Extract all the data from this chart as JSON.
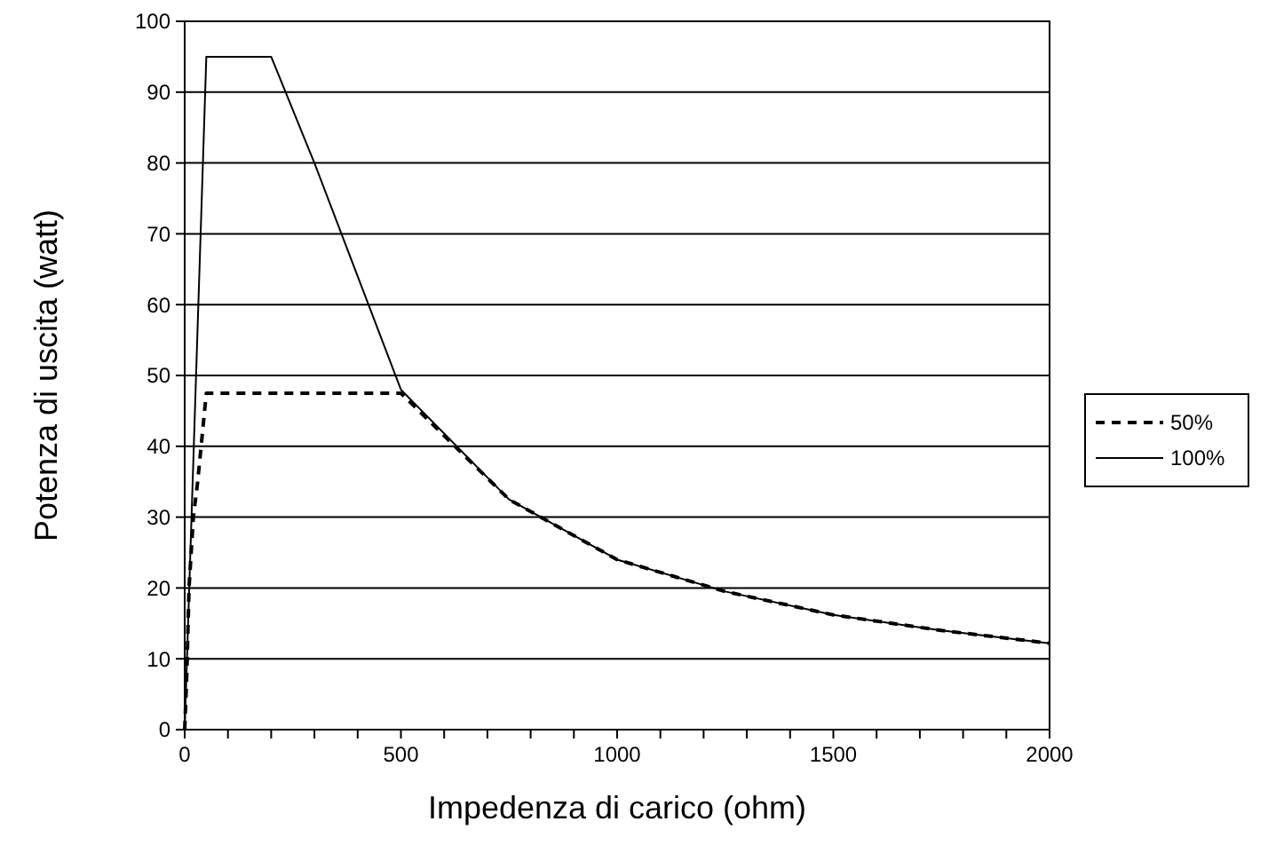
{
  "chart_data": {
    "type": "line",
    "xlabel": "Impedenza di carico (ohm)",
    "ylabel": "Potenza di uscita (watt)",
    "xlim": [
      0,
      2000
    ],
    "ylim": [
      0,
      100
    ],
    "xticks": [
      0,
      {
        "value": 100,
        "label": null
      },
      {
        "value": 200,
        "label": null
      },
      {
        "value": 300,
        "label": null
      },
      {
        "value": 400,
        "label": null
      },
      500,
      {
        "value": 600,
        "label": null
      },
      {
        "value": 700,
        "label": null
      },
      {
        "value": 800,
        "label": null
      },
      {
        "value": 900,
        "label": null
      },
      1000,
      {
        "value": 1100,
        "label": null
      },
      {
        "value": 1200,
        "label": null
      },
      {
        "value": 1300,
        "label": null
      },
      {
        "value": 1400,
        "label": null
      },
      1500,
      {
        "value": 1600,
        "label": null
      },
      {
        "value": 1700,
        "label": null
      },
      {
        "value": 1800,
        "label": null
      },
      {
        "value": 1900,
        "label": null
      },
      2000
    ],
    "yticks": [
      0,
      10,
      20,
      30,
      40,
      50,
      60,
      70,
      80,
      90,
      100
    ],
    "grid": "y",
    "legend": "right",
    "marker": "none",
    "series": [
      {
        "name": "50%",
        "color": "#000000",
        "line_style": "dashed",
        "x": [
          0,
          5,
          10,
          20,
          30,
          50,
          500,
          750,
          1000,
          1250,
          1500,
          1750,
          2000
        ],
        "values": [
          0,
          8,
          20,
          30,
          35,
          47.5,
          47.5,
          32.5,
          24,
          19.5,
          16.2,
          14,
          12.2
        ]
      },
      {
        "name": "100%",
        "color": "#000000",
        "line_style": "solid",
        "x": [
          0,
          50,
          200,
          300,
          500,
          750,
          1000,
          1250,
          1500,
          1750,
          2000
        ],
        "values": [
          0,
          95,
          95,
          80,
          48,
          32.5,
          24,
          19.5,
          16.2,
          14,
          12.2
        ]
      }
    ]
  }
}
